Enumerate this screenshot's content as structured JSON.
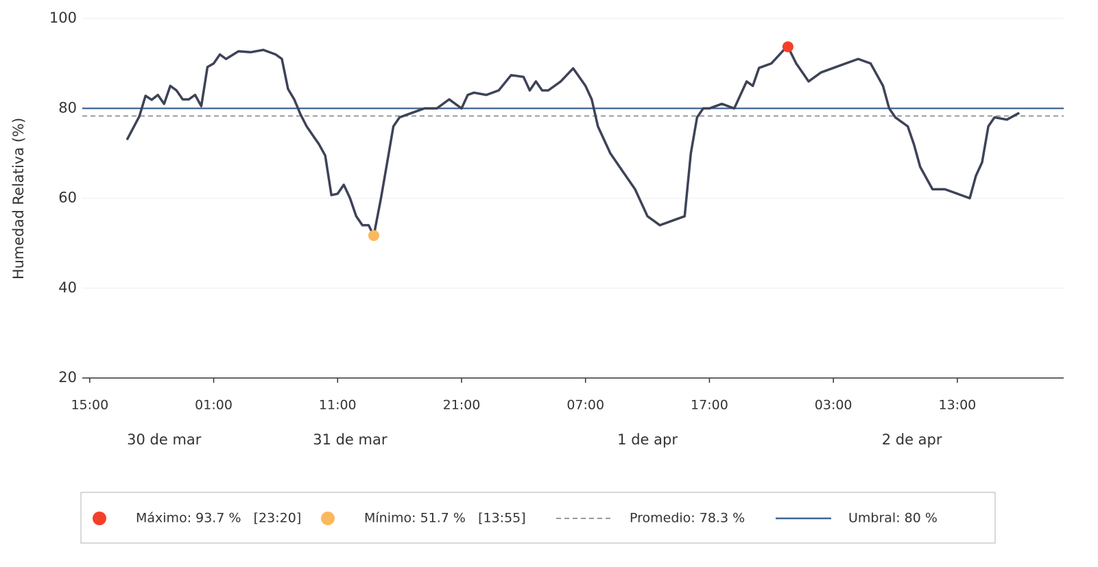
{
  "chart_data": {
    "type": "line",
    "ylabel": "Humedad Relativa (%)",
    "x": [
      "03-30 18:00",
      "03-30 19:00",
      "03-30 19:30",
      "03-30 20:00",
      "03-30 20:30",
      "03-30 21:00",
      "03-30 21:30",
      "03-30 22:00",
      "03-30 22:30",
      "03-30 23:00",
      "03-30 23:30",
      "03-31 00:00",
      "03-31 00:30",
      "03-31 01:00",
      "03-31 01:30",
      "03-31 02:00",
      "03-31 03:00",
      "03-31 04:00",
      "03-31 05:00",
      "03-31 06:00",
      "03-31 06:30",
      "03-31 07:00",
      "03-31 07:30",
      "03-31 08:00",
      "03-31 08:30",
      "03-31 09:00",
      "03-31 09:30",
      "03-31 10:00",
      "03-31 10:30",
      "03-31 11:00",
      "03-31 11:30",
      "03-31 12:00",
      "03-31 12:30",
      "03-31 13:00",
      "03-31 13:30",
      "03-31 13:55",
      "03-31 14:30",
      "03-31 15:00",
      "03-31 15:30",
      "03-31 16:00",
      "03-31 17:00",
      "03-31 18:00",
      "03-31 19:00",
      "03-31 20:00",
      "03-31 21:00",
      "03-31 21:30",
      "03-31 22:00",
      "03-31 23:00",
      "04-01 00:00",
      "04-01 01:00",
      "04-01 02:00",
      "04-01 02:30",
      "04-01 03:00",
      "04-01 03:30",
      "04-01 04:00",
      "04-01 05:00",
      "04-01 06:00",
      "04-01 07:00",
      "04-01 07:30",
      "04-01 08:00",
      "04-01 09:00",
      "04-01 10:00",
      "04-01 11:00",
      "04-01 12:00",
      "04-01 12:30",
      "04-01 13:00",
      "04-01 14:00",
      "04-01 15:00",
      "04-01 15:30",
      "04-01 16:00",
      "04-01 16:30",
      "04-01 17:00",
      "04-01 18:00",
      "04-01 19:00",
      "04-01 20:00",
      "04-01 20:30",
      "04-01 21:00",
      "04-01 22:00",
      "04-01 23:00",
      "04-01 23:20",
      "04-02 00:00",
      "04-02 00:30",
      "04-02 01:00",
      "04-02 02:00",
      "04-02 03:00",
      "04-02 04:00",
      "04-02 05:00",
      "04-02 06:00",
      "04-02 07:00",
      "04-02 07:30",
      "04-02 08:00",
      "04-02 09:00",
      "04-02 09:30",
      "04-02 10:00",
      "04-02 11:00",
      "04-02 12:00",
      "04-02 13:00",
      "04-02 14:00",
      "04-02 14:30",
      "04-02 15:00",
      "04-02 15:30",
      "04-02 16:00",
      "04-02 17:00",
      "04-02 18:00"
    ],
    "series": [
      {
        "color": "#3d4357",
        "values": [
          73,
          78.2,
          82.8,
          81.9,
          83,
          81,
          85,
          84,
          82,
          82,
          83,
          80.5,
          89.2,
          90,
          92,
          91,
          92.7,
          92.5,
          93,
          92,
          91,
          84.3,
          82,
          78.7,
          76,
          74,
          72,
          69.5,
          60.7,
          61,
          63,
          60,
          56,
          54,
          54,
          51.7,
          60,
          68,
          76,
          78,
          79,
          80,
          80,
          82,
          80,
          83,
          83.5,
          83,
          84,
          87.4,
          87,
          84,
          86,
          84,
          84,
          86,
          88.9,
          85,
          82,
          76,
          70,
          66,
          62,
          56,
          55,
          54,
          55,
          56,
          70,
          78,
          80,
          80,
          81,
          80,
          86,
          85,
          89,
          90,
          93,
          93.7,
          90,
          88,
          86,
          88,
          89,
          90,
          91,
          90,
          85,
          80,
          78,
          76,
          72,
          67,
          62,
          62,
          61,
          60,
          65,
          68,
          76,
          78,
          77.5,
          79
        ]
      }
    ],
    "xlim": [
      "03-30 14:24",
      "04-02 21:35"
    ],
    "xticks": [
      {
        "value": "03-30 15:00",
        "label": "15:00"
      },
      {
        "value": "03-31 01:00",
        "label": "01:00"
      },
      {
        "value": "03-31 11:00",
        "label": "11:00"
      },
      {
        "value": "03-31 21:00",
        "label": "21:00"
      },
      {
        "value": "04-01 07:00",
        "label": "07:00"
      },
      {
        "value": "04-01 17:00",
        "label": "17:00"
      },
      {
        "value": "04-02 03:00",
        "label": "03:00"
      },
      {
        "value": "04-02 13:00",
        "label": "13:00"
      }
    ],
    "day_labels": [
      {
        "value": "03-30 21:00",
        "label": "30 de mar"
      },
      {
        "value": "03-31 12:00",
        "label": "31 de mar"
      },
      {
        "value": "04-01 12:00",
        "label": "1 de apr"
      },
      {
        "value": "04-02 09:20",
        "label": "2 de apr"
      }
    ],
    "ylim": [
      20,
      100
    ],
    "yticks": [
      20,
      40,
      60,
      80,
      100
    ],
    "grid": true,
    "maximum": {
      "x": "04-01 23:20",
      "value": 93.7,
      "label": "Máximo: 93.7 %   [23:20]",
      "color": "#f4402a"
    },
    "minimum": {
      "x": "03-31 13:55",
      "value": 51.7,
      "label": "Mínimo: 51.7 %   [13:55]",
      "color": "#fbb95e"
    },
    "average": {
      "value": 78.3,
      "label": "Promedio: 78.3 %",
      "color": "#999999"
    },
    "threshold": {
      "value": 80,
      "label": "Umbral: 80 %",
      "color": "#3f6594"
    },
    "legend": "bottom"
  }
}
